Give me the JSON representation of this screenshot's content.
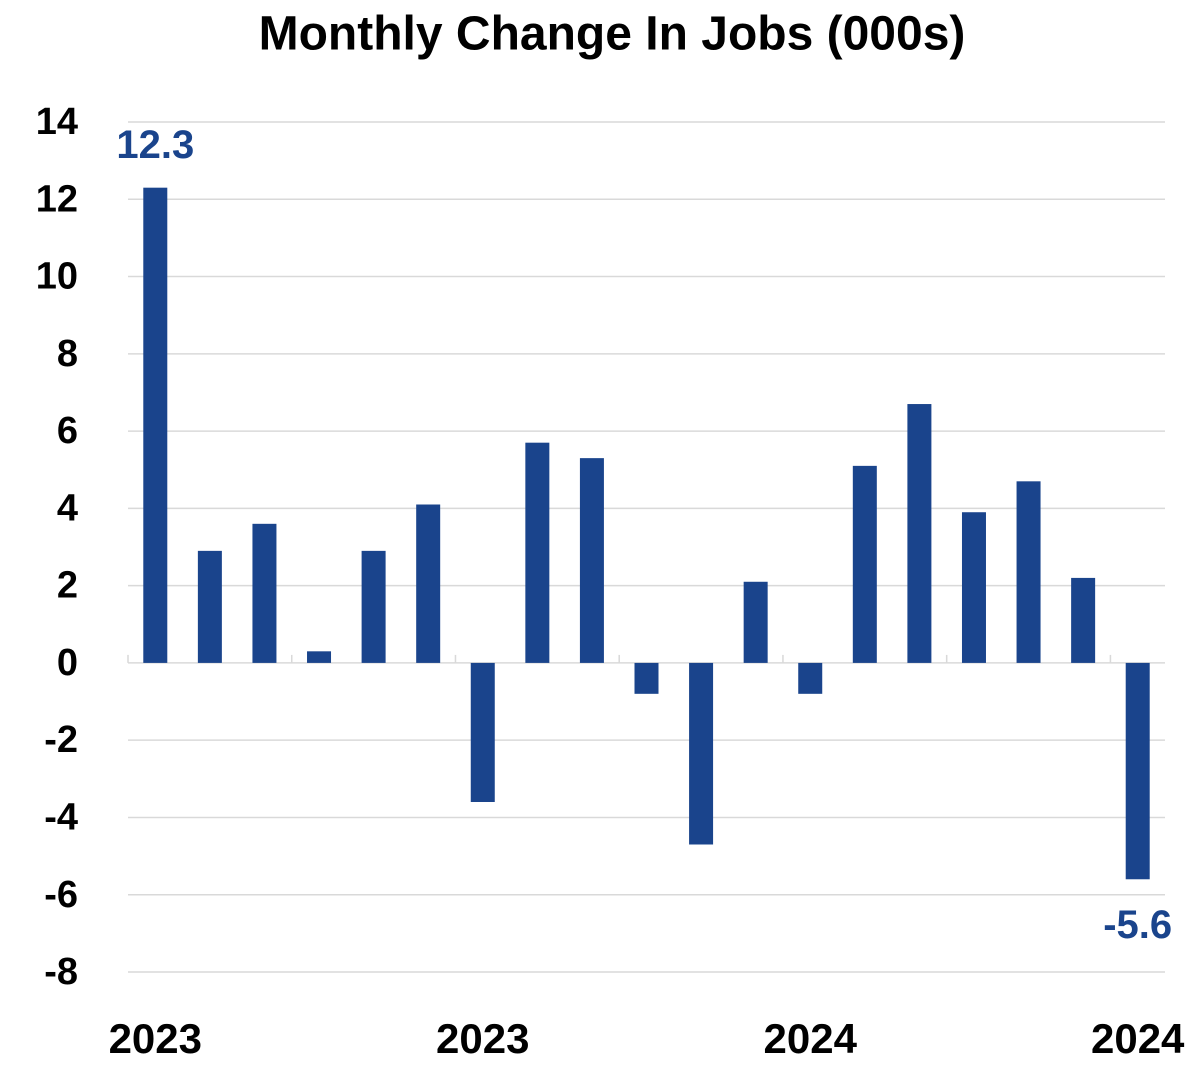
{
  "chart_data": {
    "type": "bar",
    "title": "Monthly Change In Jobs (000s)",
    "categories": [
      "2023",
      null,
      null,
      null,
      null,
      null,
      "2023",
      null,
      null,
      null,
      null,
      null,
      "2024",
      null,
      null,
      null,
      null,
      null,
      "2024"
    ],
    "values": [
      12.3,
      2.9,
      3.6,
      0.3,
      2.9,
      4.1,
      -3.6,
      5.7,
      5.3,
      -0.8,
      -4.7,
      2.1,
      -0.8,
      5.1,
      6.7,
      3.9,
      4.7,
      2.2,
      -5.6
    ],
    "value_labels": [
      "12.3",
      null,
      null,
      null,
      null,
      null,
      null,
      null,
      null,
      null,
      null,
      null,
      null,
      null,
      null,
      null,
      null,
      null,
      "-5.6"
    ],
    "color": "#1a448c",
    "ylim": [
      -8,
      14
    ],
    "yticks": [
      -8,
      -6,
      -4,
      -2,
      0,
      2,
      4,
      6,
      8,
      10,
      12,
      14
    ],
    "grid": true
  }
}
